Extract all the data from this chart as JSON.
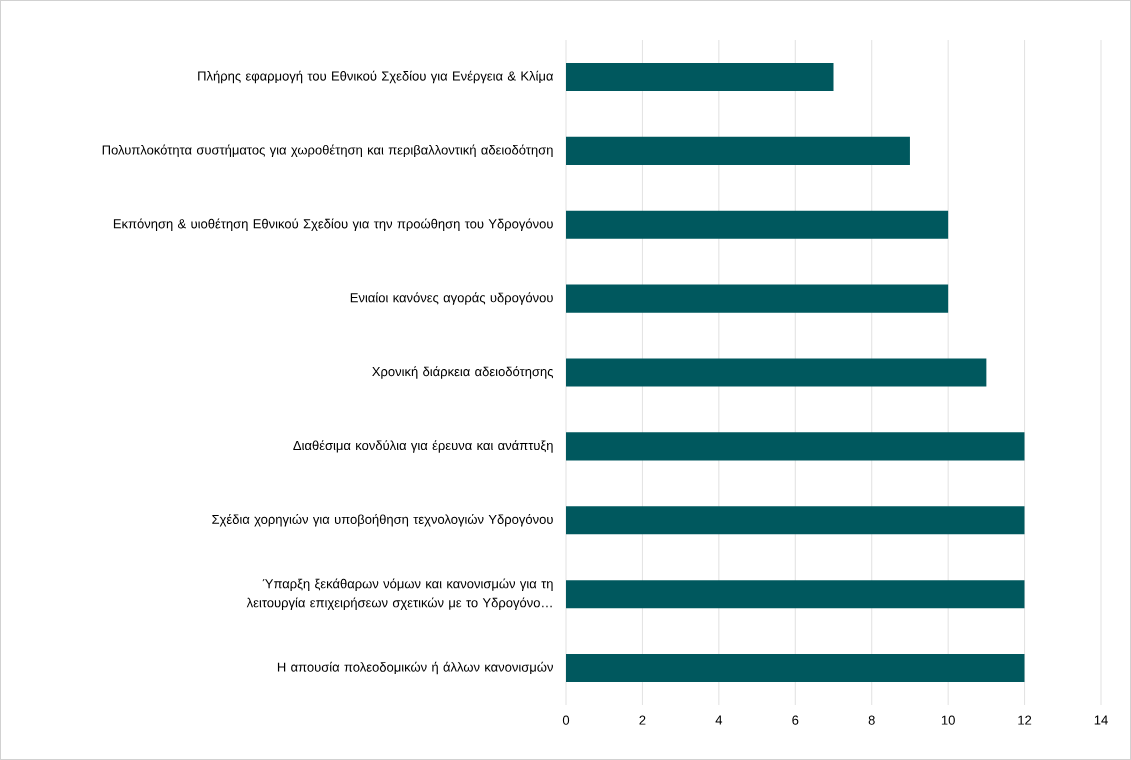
{
  "chart_data": {
    "type": "bar",
    "orientation": "horizontal",
    "categories": [
      "Πλήρης εφαρμογή του Εθνικού Σχεδίου για Ενέργεια & Κλίμα",
      "Πολυπλοκότητα συστήματος για χωροθέτηση και περιβαλλοντική αδειοδότηση",
      "Εκπόνηση & υιοθέτηση Εθνικού Σχεδίου για την προώθηση του Υδρογόνου",
      "Ενιαίοι κανόνες αγοράς υδρογόνου",
      "Χρονική διάρκεια αδειοδότησης",
      "Διαθέσιμα κονδύλια για έρευνα και ανάπτυξη",
      "Σχέδια χορηγιών για υποβοήθηση τεχνολογιών Υδρογόνου",
      "Ύπαρξη ξεκάθαρων νόμων και κανονισμών για τη λειτουργία επιχειρήσεων σχετικών με το Υδρογόνο…",
      "Η απουσία πολεοδομικών ή άλλων κανονισμών"
    ],
    "values": [
      7,
      9,
      10,
      10,
      11,
      12,
      12,
      12,
      12
    ],
    "color": "#00585e",
    "xlim": [
      0,
      14
    ],
    "xticks": [
      0,
      2,
      4,
      6,
      8,
      10,
      12,
      14
    ],
    "grid": "x"
  }
}
